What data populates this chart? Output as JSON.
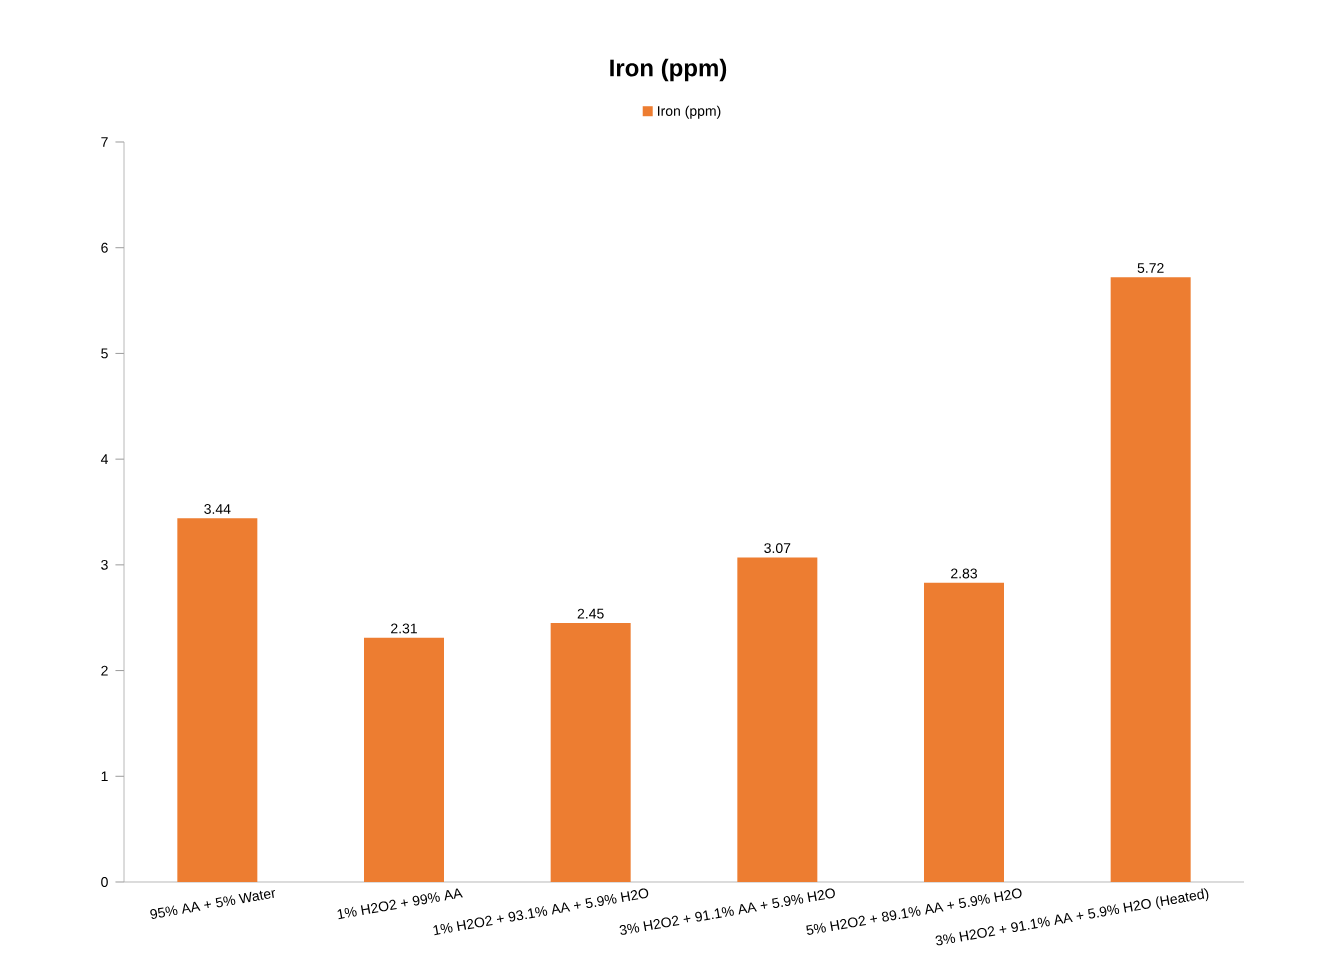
{
  "chart_data": {
    "type": "bar",
    "title": "Iron (ppm)",
    "categories": [
      "95% AA + 5% Water",
      "1% H2O2 + 99% AA",
      "1% H2O2 + 93.1% AA + 5.9% H2O",
      "3% H2O2 + 91.1% AA + 5.9% H2O",
      "5% H2O2 + 89.1% AA + 5.9% H2O",
      "3% H2O2 + 91.1% AA + 5.9% H2O (Heated)"
    ],
    "series": [
      {
        "name": "Iron (ppm)",
        "color": "#ed7d31",
        "values": [
          3.44,
          2.31,
          2.45,
          3.07,
          2.83,
          5.72
        ]
      }
    ],
    "ylim": [
      0,
      7
    ],
    "yticks": [
      0,
      1,
      2,
      3,
      4,
      5,
      6,
      7
    ],
    "data_labels": true,
    "legend": "top",
    "grid": false
  }
}
